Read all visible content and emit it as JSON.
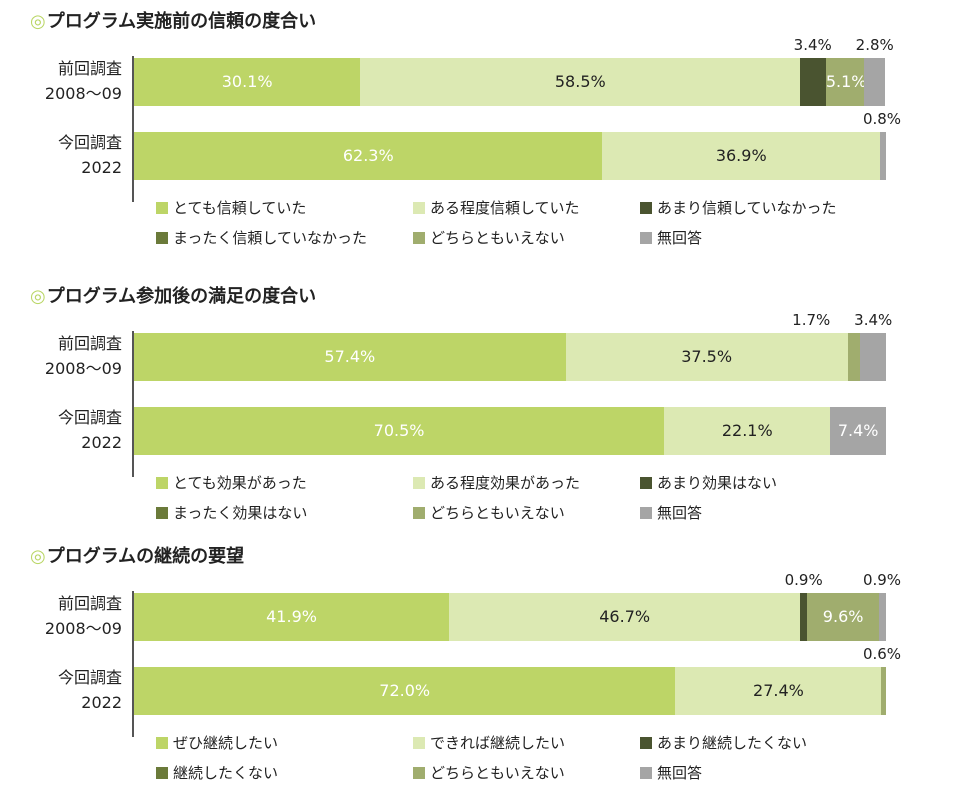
{
  "chart_data": [
    {
      "type": "bar",
      "stacked": true,
      "orientation": "horizontal",
      "title": "◎プログラム実施前の信頼の度合い",
      "categories": [
        {
          "line1": "前回調査",
          "line2": "2008〜09"
        },
        {
          "line1": "今回調査",
          "line2": "2022"
        }
      ],
      "series": [
        {
          "name": "とても信頼していた",
          "color": "#bdd567",
          "values": [
            30.1,
            62.3
          ],
          "labels": [
            "30.1%",
            "62.3%"
          ]
        },
        {
          "name": "ある程度信頼していた",
          "color": "#dce9b3",
          "values": [
            58.5,
            36.9
          ],
          "labels": [
            "58.5%",
            "36.9%"
          ]
        },
        {
          "name": "あまり信頼していなかった",
          "color": "#4a5430",
          "values": [
            3.4,
            0
          ],
          "labels": [
            "3.4%",
            ""
          ]
        },
        {
          "name": "まったく信頼していなかった",
          "color": "#6b7a3a",
          "values": [
            0,
            0
          ],
          "labels": [
            "",
            ""
          ]
        },
        {
          "name": "どちらともいえない",
          "color": "#a0ad6e",
          "values": [
            5.1,
            0
          ],
          "labels": [
            "5.1%",
            ""
          ]
        },
        {
          "name": "無回答",
          "color": "#a5a5a5",
          "values": [
            2.8,
            0.8
          ],
          "labels": [
            "2.8%",
            "0.8%"
          ]
        }
      ],
      "xlim": [
        0,
        100
      ]
    },
    {
      "type": "bar",
      "stacked": true,
      "orientation": "horizontal",
      "title": "◎プログラム参加後の満足の度合い",
      "categories": [
        {
          "line1": "前回調査",
          "line2": "2008〜09"
        },
        {
          "line1": "今回調査",
          "line2": "2022"
        }
      ],
      "series": [
        {
          "name": "とても効果があった",
          "color": "#bdd567",
          "values": [
            57.4,
            70.5
          ],
          "labels": [
            "57.4%",
            "70.5%"
          ]
        },
        {
          "name": "ある程度効果があった",
          "color": "#dce9b3",
          "values": [
            37.5,
            22.1
          ],
          "labels": [
            "37.5%",
            "22.1%"
          ]
        },
        {
          "name": "あまり効果はない",
          "color": "#4a5430",
          "values": [
            0,
            0
          ],
          "labels": [
            "",
            ""
          ]
        },
        {
          "name": "まったく効果はない",
          "color": "#6b7a3a",
          "values": [
            0,
            0
          ],
          "labels": [
            "",
            ""
          ]
        },
        {
          "name": "どちらともいえない",
          "color": "#a0ad6e",
          "values": [
            1.7,
            0
          ],
          "labels": [
            "1.7%",
            ""
          ]
        },
        {
          "name": "無回答",
          "color": "#a5a5a5",
          "values": [
            3.4,
            7.4
          ],
          "labels": [
            "3.4%",
            "7.4%"
          ]
        }
      ],
      "xlim": [
        0,
        100
      ]
    },
    {
      "type": "bar",
      "stacked": true,
      "orientation": "horizontal",
      "title": "◎プログラムの継続の要望",
      "categories": [
        {
          "line1": "前回調査",
          "line2": "2008〜09"
        },
        {
          "line1": "今回調査",
          "line2": "2022"
        }
      ],
      "series": [
        {
          "name": "ぜひ継続したい",
          "color": "#bdd567",
          "values": [
            41.9,
            72.0
          ],
          "labels": [
            "41.9%",
            "72.0%"
          ]
        },
        {
          "name": "できれば継続したい",
          "color": "#dce9b3",
          "values": [
            46.7,
            27.4
          ],
          "labels": [
            "46.7%",
            "27.4%"
          ]
        },
        {
          "name": "あまり継続したくない",
          "color": "#4a5430",
          "values": [
            0.9,
            0
          ],
          "labels": [
            "0.9%",
            ""
          ]
        },
        {
          "name": "継続したくない",
          "color": "#6b7a3a",
          "values": [
            0,
            0
          ],
          "labels": [
            "",
            ""
          ]
        },
        {
          "name": "どちらともいえない",
          "color": "#a0ad6e",
          "values": [
            9.6,
            0.6
          ],
          "labels": [
            "9.6%",
            "0.6%"
          ]
        },
        {
          "name": "無回答",
          "color": "#a5a5a5",
          "values": [
            0.9,
            0
          ],
          "labels": [
            "0.9%",
            ""
          ]
        }
      ],
      "xlim": [
        0,
        100
      ]
    }
  ]
}
